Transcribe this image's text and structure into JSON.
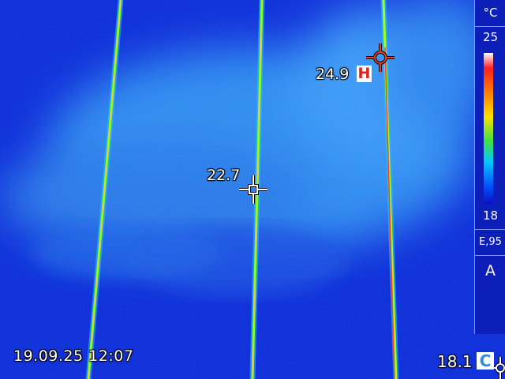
{
  "camera": {
    "timestamp": "19.09.25 12:07",
    "unit": "°C",
    "emissivity": "E,95",
    "mode": "A"
  },
  "scale": {
    "max": "25",
    "min": "18"
  },
  "markers": {
    "center": {
      "value": "22.7"
    },
    "hot": {
      "value": "24.9",
      "badge": "H"
    },
    "cold": {
      "value": "18.1",
      "badge": "C"
    }
  },
  "colors": {
    "background": "#0a2ad8",
    "warm_region": "#2f8cf0",
    "panel": "#0c1fb8",
    "hot_marker": "#e04020",
    "cold_badge_text": "#2a8ee8"
  },
  "icons": [
    "crosshair-center-icon",
    "crosshair-hot-icon",
    "crosshair-cold-icon"
  ]
}
